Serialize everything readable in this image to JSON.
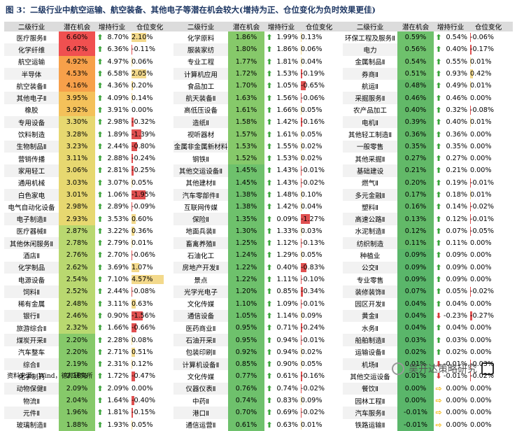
{
  "title": "图 3：二级行业中航空运输、航空装备、其他电子等潜在机会较大(增持为正、仓位变化为负时效果更佳)",
  "headers": [
    "二级行业",
    "潜在机会",
    "增持行业",
    "仓位变化"
  ],
  "footer": "资料来源：Wind，德邦研究所",
  "watermark": "吴开达策略研究",
  "colors": {
    "up": "#3aa43a",
    "down": "#d63a3a",
    "flat": "#f0b400",
    "header_bg": "#dcdcdc"
  },
  "columns": [
    [
      {
        "name": "医疗服务Ⅱ",
        "pot": "6.60%",
        "dir": "up",
        "pct": "8.70%",
        "pos": "2.10%"
      },
      {
        "name": "化学纤维",
        "pot": "6.47%",
        "dir": "up",
        "pct": "6.36%",
        "pos": "-0.11%"
      },
      {
        "name": "航空运输",
        "pot": "4.92%",
        "dir": "up",
        "pct": "4.97%",
        "pos": "0.06%"
      },
      {
        "name": "半导体",
        "pot": "4.53%",
        "dir": "up",
        "pct": "6.58%",
        "pos": "2.05%"
      },
      {
        "name": "航空装备Ⅱ",
        "pot": "4.16%",
        "dir": "up",
        "pct": "4.36%",
        "pos": "0.20%"
      },
      {
        "name": "其他电子Ⅱ",
        "pot": "3.95%",
        "dir": "up",
        "pct": "4.09%",
        "pos": "0.14%"
      },
      {
        "name": "橡胶",
        "pot": "3.92%",
        "dir": "up",
        "pct": "3.91%",
        "pos": "0.00%"
      },
      {
        "name": "专用设备",
        "pot": "3.30%",
        "dir": "up",
        "pct": "2.98%",
        "pos": "-0.32%"
      },
      {
        "name": "饮料制造",
        "pot": "3.28%",
        "dir": "up",
        "pct": "1.89%",
        "pos": "-1.39%"
      },
      {
        "name": "生物制品Ⅱ",
        "pot": "3.23%",
        "dir": "up",
        "pct": "2.44%",
        "pos": "-0.80%"
      },
      {
        "name": "营销传播",
        "pot": "3.11%",
        "dir": "up",
        "pct": "2.88%",
        "pos": "-0.24%"
      },
      {
        "name": "家用轻工",
        "pot": "3.06%",
        "dir": "up",
        "pct": "2.81%",
        "pos": "-0.25%"
      },
      {
        "name": "通用机械",
        "pot": "3.03%",
        "dir": "up",
        "pct": "3.07%",
        "pos": "0.05%"
      },
      {
        "name": "白色家电",
        "pot": "3.01%",
        "dir": "up",
        "pct": "1.06%",
        "pos": "-1.95%"
      },
      {
        "name": "电气自动化设备",
        "pot": "2.98%",
        "dir": "up",
        "pct": "2.89%",
        "pos": "-0.09%"
      },
      {
        "name": "电子制造Ⅱ",
        "pot": "2.93%",
        "dir": "up",
        "pct": "3.53%",
        "pos": "0.60%"
      },
      {
        "name": "医疗器械Ⅱ",
        "pot": "2.87%",
        "dir": "up",
        "pct": "3.22%",
        "pos": "0.36%"
      },
      {
        "name": "其他休闲服务Ⅱ",
        "pot": "2.78%",
        "dir": "up",
        "pct": "2.79%",
        "pos": "0.01%"
      },
      {
        "name": "酒店Ⅱ",
        "pot": "2.76%",
        "dir": "up",
        "pct": "2.70%",
        "pos": "-0.06%"
      },
      {
        "name": "化学制品",
        "pot": "2.62%",
        "dir": "up",
        "pct": "3.69%",
        "pos": "1.07%"
      },
      {
        "name": "电源设备",
        "pot": "2.54%",
        "dir": "up",
        "pct": "7.10%",
        "pos": "4.57%"
      },
      {
        "name": "饲料Ⅱ",
        "pot": "2.52%",
        "dir": "up",
        "pct": "2.44%",
        "pos": "-0.08%"
      },
      {
        "name": "稀有金属",
        "pot": "2.48%",
        "dir": "up",
        "pct": "3.11%",
        "pos": "0.63%"
      },
      {
        "name": "银行Ⅱ",
        "pot": "2.46%",
        "dir": "up",
        "pct": "0.90%",
        "pos": "-1.56%"
      },
      {
        "name": "旅游综合Ⅱ",
        "pot": "2.32%",
        "dir": "up",
        "pct": "1.66%",
        "pos": "-0.66%"
      },
      {
        "name": "煤炭开采Ⅱ",
        "pot": "2.20%",
        "dir": "up",
        "pct": "2.28%",
        "pos": "0.08%"
      },
      {
        "name": "汽车整车",
        "pot": "2.20%",
        "dir": "up",
        "pct": "2.71%",
        "pos": "0.51%"
      },
      {
        "name": "综合Ⅱ",
        "pot": "2.19%",
        "dir": "up",
        "pct": "2.31%",
        "pos": "0.12%"
      },
      {
        "name": "化学制药",
        "pot": "2.18%",
        "dir": "up",
        "pct": "1.72%",
        "pos": "-0.47%"
      },
      {
        "name": "动物保健Ⅱ",
        "pot": "2.09%",
        "dir": "up",
        "pct": "2.09%",
        "pos": "0.00%"
      },
      {
        "name": "物流Ⅱ",
        "pot": "2.04%",
        "dir": "up",
        "pct": "1.64%",
        "pos": "-0.40%"
      },
      {
        "name": "元件Ⅱ",
        "pot": "1.96%",
        "dir": "up",
        "pct": "1.81%",
        "pos": "-0.15%"
      },
      {
        "name": "玻璃制造Ⅱ",
        "pot": "1.88%",
        "dir": "up",
        "pct": "1.93%",
        "pos": "0.05%"
      }
    ],
    [
      {
        "name": "化学原料",
        "pot": "1.86%",
        "dir": "up",
        "pct": "1.99%",
        "pos": "0.13%"
      },
      {
        "name": "服装家纺",
        "pot": "1.80%",
        "dir": "up",
        "pct": "1.86%",
        "pos": "0.06%"
      },
      {
        "name": "专业工程",
        "pot": "1.77%",
        "dir": "up",
        "pct": "1.81%",
        "pos": "0.04%"
      },
      {
        "name": "计算机应用",
        "pot": "1.72%",
        "dir": "up",
        "pct": "1.53%",
        "pos": "-0.19%"
      },
      {
        "name": "食品加工",
        "pot": "1.70%",
        "dir": "up",
        "pct": "1.05%",
        "pos": "-0.65%"
      },
      {
        "name": "航天装备Ⅱ",
        "pot": "1.63%",
        "dir": "up",
        "pct": "1.56%",
        "pos": "-0.06%"
      },
      {
        "name": "高低压设备",
        "pot": "1.61%",
        "dir": "up",
        "pct": "1.66%",
        "pos": "0.05%"
      },
      {
        "name": "造纸Ⅱ",
        "pot": "1.58%",
        "dir": "up",
        "pct": "1.42%",
        "pos": "-0.16%"
      },
      {
        "name": "视听器材",
        "pot": "1.57%",
        "dir": "up",
        "pct": "1.61%",
        "pos": "0.05%"
      },
      {
        "name": "金属非金属新材料",
        "pot": "1.53%",
        "dir": "up",
        "pct": "1.55%",
        "pos": "0.02%"
      },
      {
        "name": "钢铁Ⅱ",
        "pot": "1.52%",
        "dir": "up",
        "pct": "1.53%",
        "pos": "0.02%"
      },
      {
        "name": "其他交运设备Ⅱ",
        "pot": "1.45%",
        "dir": "up",
        "pct": "1.43%",
        "pos": "-0.01%"
      },
      {
        "name": "其他建材Ⅱ",
        "pot": "1.45%",
        "dir": "up",
        "pct": "1.43%",
        "pos": "-0.02%"
      },
      {
        "name": "汽车零部件Ⅱ",
        "pot": "1.38%",
        "dir": "up",
        "pct": "1.48%",
        "pos": "0.10%"
      },
      {
        "name": "互联网传媒",
        "pot": "1.38%",
        "dir": "up",
        "pct": "1.42%",
        "pos": "0.04%"
      },
      {
        "name": "保险Ⅱ",
        "pot": "1.35%",
        "dir": "up",
        "pct": "0.09%",
        "pos": "-1.27%"
      },
      {
        "name": "地面兵装Ⅱ",
        "pot": "1.30%",
        "dir": "up",
        "pct": "1.33%",
        "pos": "0.03%"
      },
      {
        "name": "畜禽养殖Ⅱ",
        "pot": "1.25%",
        "dir": "up",
        "pct": "1.12%",
        "pos": "-0.13%"
      },
      {
        "name": "石油化工",
        "pot": "1.24%",
        "dir": "up",
        "pct": "1.29%",
        "pos": "0.05%"
      },
      {
        "name": "房地产开发Ⅱ",
        "pot": "1.22%",
        "dir": "up",
        "pct": "0.40%",
        "pos": "-0.83%"
      },
      {
        "name": "景点",
        "pot": "1.22%",
        "dir": "up",
        "pct": "1.11%",
        "pos": "-0.10%"
      },
      {
        "name": "光学光电子",
        "pot": "1.20%",
        "dir": "up",
        "pct": "0.85%",
        "pos": "-0.34%"
      },
      {
        "name": "文化传媒",
        "pot": "1.10%",
        "dir": "up",
        "pct": "1.09%",
        "pos": "-0.01%"
      },
      {
        "name": "通信设备",
        "pot": "1.05%",
        "dir": "up",
        "pct": "1.14%",
        "pos": "0.09%"
      },
      {
        "name": "医药商业Ⅱ",
        "pot": "0.95%",
        "dir": "up",
        "pct": "0.71%",
        "pos": "-0.24%"
      },
      {
        "name": "石油开采Ⅱ",
        "pot": "0.95%",
        "dir": "up",
        "pct": "0.94%",
        "pos": "-0.01%"
      },
      {
        "name": "包装印刷Ⅱ",
        "pot": "0.92%",
        "dir": "up",
        "pct": "0.94%",
        "pos": "0.02%"
      },
      {
        "name": "计算机设备Ⅱ",
        "pot": "0.85%",
        "dir": "up",
        "pct": "0.90%",
        "pos": "0.05%"
      },
      {
        "name": "文化传媒",
        "pot": "0.77%",
        "dir": "up",
        "pct": "0.61%",
        "pos": "-0.16%"
      },
      {
        "name": "仪器仪表Ⅱ",
        "pot": "0.76%",
        "dir": "up",
        "pct": "0.74%",
        "pos": "-0.02%"
      },
      {
        "name": "中药Ⅱ",
        "pot": "0.74%",
        "dir": "up",
        "pct": "0.83%",
        "pos": "0.09%"
      },
      {
        "name": "港口Ⅱ",
        "pot": "0.70%",
        "dir": "up",
        "pct": "0.69%",
        "pos": "-0.02%"
      },
      {
        "name": "通信运营Ⅱ",
        "pot": "0.61%",
        "dir": "up",
        "pct": "0.63%",
        "pos": "0.01%"
      }
    ],
    [
      {
        "name": "环保工程及服务Ⅱ",
        "pot": "0.59%",
        "dir": "up",
        "pct": "0.54%",
        "pos": "-0.06%"
      },
      {
        "name": "电力",
        "pot": "0.56%",
        "dir": "up",
        "pct": "0.40%",
        "pos": "-0.17%"
      },
      {
        "name": "金属制品Ⅱ",
        "pot": "0.54%",
        "dir": "up",
        "pct": "0.55%",
        "pos": "0.01%"
      },
      {
        "name": "券商Ⅱ",
        "pot": "0.51%",
        "dir": "up",
        "pct": "0.93%",
        "pos": "0.42%"
      },
      {
        "name": "航运Ⅱ",
        "pot": "0.48%",
        "dir": "up",
        "pct": "0.49%",
        "pos": "0.01%"
      },
      {
        "name": "采掘服务Ⅱ",
        "pot": "0.46%",
        "dir": "up",
        "pct": "0.46%",
        "pos": "0.00%"
      },
      {
        "name": "农产品加工",
        "pot": "0.40%",
        "dir": "up",
        "pct": "0.32%",
        "pos": "-0.08%"
      },
      {
        "name": "电机Ⅱ",
        "pot": "0.39%",
        "dir": "up",
        "pct": "0.40%",
        "pos": "0.01%"
      },
      {
        "name": "其他轻工制造Ⅱ",
        "pot": "0.36%",
        "dir": "up",
        "pct": "0.36%",
        "pos": "0.00%"
      },
      {
        "name": "一般零售",
        "pot": "0.35%",
        "dir": "up",
        "pct": "0.35%",
        "pos": "0.00%"
      },
      {
        "name": "其他采掘Ⅱ",
        "pot": "0.27%",
        "dir": "up",
        "pct": "0.27%",
        "pos": "0.00%"
      },
      {
        "name": "基础建设",
        "pot": "0.21%",
        "dir": "up",
        "pct": "0.21%",
        "pos": "0.00%"
      },
      {
        "name": "燃气Ⅱ",
        "pot": "0.20%",
        "dir": "up",
        "pct": "0.19%",
        "pos": "-0.01%"
      },
      {
        "name": "多元金融Ⅱ",
        "pot": "0.17%",
        "dir": "up",
        "pct": "0.18%",
        "pos": "0.01%"
      },
      {
        "name": "塑料Ⅱ",
        "pot": "0.16%",
        "dir": "up",
        "pct": "0.14%",
        "pos": "-0.02%"
      },
      {
        "name": "高速公路Ⅱ",
        "pot": "0.13%",
        "dir": "up",
        "pct": "0.12%",
        "pos": "-0.01%"
      },
      {
        "name": "水泥制造Ⅱ",
        "pot": "0.12%",
        "dir": "up",
        "pct": "0.07%",
        "pos": "-0.05%"
      },
      {
        "name": "纺织制造",
        "pot": "0.11%",
        "dir": "up",
        "pct": "0.11%",
        "pos": "0.00%"
      },
      {
        "name": "种植业",
        "pot": "0.09%",
        "dir": "up",
        "pct": "0.09%",
        "pos": "0.00%"
      },
      {
        "name": "公交Ⅱ",
        "pot": "0.09%",
        "dir": "up",
        "pct": "0.09%",
        "pos": "0.00%"
      },
      {
        "name": "专业零售",
        "pot": "0.09%",
        "dir": "up",
        "pct": "0.09%",
        "pos": "0.00%"
      },
      {
        "name": "装修装饰Ⅱ",
        "pot": "0.07%",
        "dir": "up",
        "pct": "0.05%",
        "pos": "-0.02%"
      },
      {
        "name": "园区开发Ⅱ",
        "pot": "0.04%",
        "dir": "up",
        "pct": "0.04%",
        "pos": "0.00%"
      },
      {
        "name": "黄金Ⅱ",
        "pot": "0.04%",
        "dir": "down",
        "pct": "-0.23%",
        "pos": "-0.27%"
      },
      {
        "name": "水务Ⅱ",
        "pot": "0.04%",
        "dir": "up",
        "pct": "0.04%",
        "pos": "0.00%"
      },
      {
        "name": "船舶制造Ⅱ",
        "pot": "0.03%",
        "dir": "up",
        "pct": "0.03%",
        "pos": "0.00%"
      },
      {
        "name": "运输设备Ⅱ",
        "pot": "0.02%",
        "dir": "up",
        "pct": "0.02%",
        "pos": "0.00%"
      },
      {
        "name": "机场Ⅱ",
        "pot": "0.01%",
        "dir": "down",
        "pct": "-0.01%",
        "pos": "-0.03%"
      },
      {
        "name": "其他交运设备",
        "pot": "0.01%",
        "dir": "down",
        "pct": "-0.01%",
        "pos": "-0.02%"
      },
      {
        "name": "餐饮Ⅱ",
        "pot": "0.00%",
        "dir": "flat",
        "pct": "0.00%",
        "pos": "0.00%"
      },
      {
        "name": "园林工程Ⅱ",
        "pot": "0.00%",
        "dir": "flat",
        "pct": "0.00%",
        "pos": "0.00%"
      },
      {
        "name": "汽车服务Ⅱ",
        "pot": "-0.01%",
        "dir": "flat",
        "pct": "0.00%",
        "pos": "0.00%"
      },
      {
        "name": "铁路运输Ⅱ",
        "pot": "-0.01%",
        "dir": "flat",
        "pct": "0.00%",
        "pos": "0.00%"
      }
    ]
  ]
}
